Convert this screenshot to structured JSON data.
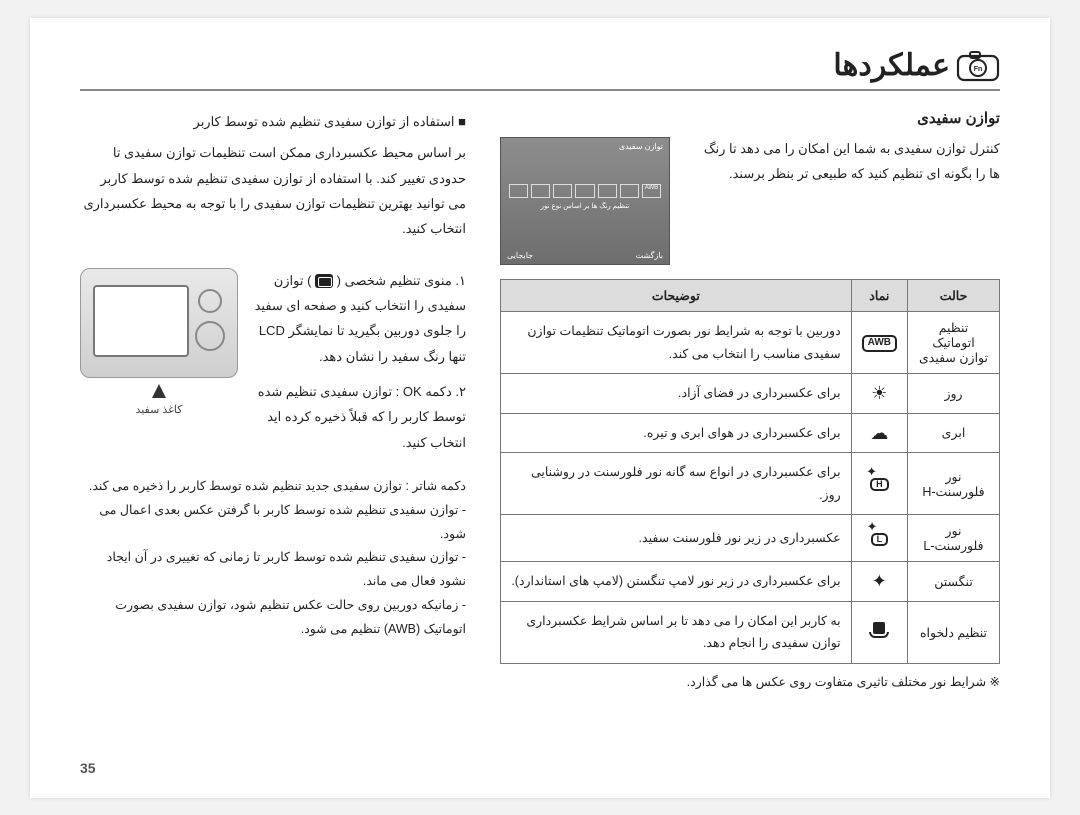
{
  "header": {
    "title": "عملکردها"
  },
  "right": {
    "section_title": "توازن سفیدی",
    "intro": "کنترل توازن سفیدی به شما این امکان را می دهد تا رنگ ها را بگونه ای تنظیم کنید که طبیعی تر بنظر برسند.",
    "preview": {
      "top": "توازن سفیدی",
      "mid": "تنظیم رنگ ها بر اساس نوع نور",
      "bl": "بازگشت",
      "br": "جابجایی"
    },
    "table": {
      "head": {
        "mode": "حالت",
        "icon": "نماد",
        "desc": "توضیحات"
      },
      "rows": [
        {
          "mode": "تنظیم اتوماتیک توازن سفیدی",
          "icon_text": "AWB",
          "icon_kind": "box",
          "desc": "دوربین با توجه به شرایط نور بصورت اتوماتیک تنظیمات توازن سفیدی مناسب را انتخاب می کند."
        },
        {
          "mode": "روز",
          "icon_text": "☀",
          "icon_kind": "glyph",
          "desc": "برای عکسبرداری در فضای آزاد."
        },
        {
          "mode": "ابری",
          "icon_text": "☁",
          "icon_kind": "glyph",
          "desc": "برای عکسبرداری در هوای ابری و تیره."
        },
        {
          "mode": "نور فلورسنت-H",
          "icon_text": "H",
          "icon_kind": "fluor",
          "desc": "برای عکسبرداری در انواع سه گانه نور فلورسنت در روشنایی روز."
        },
        {
          "mode": "نور فلورسنت-L",
          "icon_text": "L",
          "icon_kind": "fluor",
          "desc": "عکسبرداری در زیر نور فلورسنت سفید."
        },
        {
          "mode": "تنگستن",
          "icon_text": "✦",
          "icon_kind": "glyph",
          "desc": "برای عکسبرداری در زیر نور لامپ تنگستن (لامپ های استاندارد)."
        },
        {
          "mode": "تنظیم دلخواه",
          "icon_text": "sq",
          "icon_kind": "custom",
          "desc": "به کاربر این امکان را می دهد تا بر اساس شرایط عکسبرداری توازن سفیدی را انجام دهد."
        }
      ]
    },
    "footnote": "※ شرایط نور مختلف تاثیری متفاوت روی عکس ها می گذارد."
  },
  "left": {
    "para1_label": "■",
    "para1": "استفاده از توازن سفیدی تنظیم شده توسط کاربر",
    "para2": "بر اساس محیط عکسبرداری ممکن است تنظیمات توازن سفیدی تا حدودی تغییر کند. با استفاده از توازن سفیدی تنظیم شده توسط کاربر می توانید بهترین تنظیمات توازن سفیدی را با توجه به محیط عکسبرداری انتخاب کنید.",
    "step1": "۱. منوی تنظیم شخصی (        ) توازن سفیدی را انتخاب کنید و صفحه ای سفید را جلوی دوربین بگیرید تا نمایشگر LCD تنها رنگ سفید را نشان دهد.",
    "step2": "۲. دکمه OK : توازن سفیدی تنظیم شده توسط کاربر را که قبلاً ذخیره کرده اید انتخاب کنید.",
    "camera_caption": "کاغذ سفید",
    "sub_lines": [
      "دکمه شاتر : توازن سفیدی جدید تنظیم شده توسط کاربر را ذخیره می کند.",
      "- توازن سفیدی تنظیم شده توسط کاربر با گرفتن عکس بعدی اعمال می شود.",
      "- توازن سفیدی تنظیم شده توسط کاربر تا زمانی که تغییری در آن ایجاد نشود فعال می ماند.",
      "- زمانیکه دوربین روی حالت عکس تنظیم شود، توازن سفیدی بصورت اتوماتیک (AWB) تنظیم می شود."
    ]
  },
  "page_number": "35"
}
